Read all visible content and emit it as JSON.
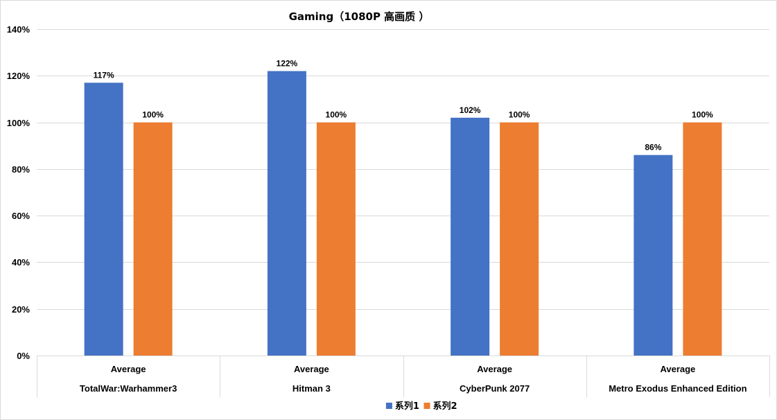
{
  "chart_data": {
    "type": "bar",
    "title": "Gaming（1080P 高画质 ）",
    "xlabel": "",
    "ylabel": "",
    "ylim": [
      0,
      1.4
    ],
    "y_ticks": [
      0,
      0.2,
      0.4,
      0.6,
      0.8,
      1.0,
      1.2,
      1.4
    ],
    "y_tick_labels": [
      "0%",
      "20%",
      "40%",
      "60%",
      "80%",
      "100%",
      "120%",
      "140%"
    ],
    "grid": true,
    "legend_position": "bottom",
    "category_levels": [
      [
        "Average",
        "Average",
        "Average",
        "Average"
      ],
      [
        "TotalWar:Warhammer3",
        "Hitman 3",
        "CyberPunk 2077",
        "Metro Exodus Enhanced Edition"
      ]
    ],
    "categories": [
      "Average TotalWar:Warhammer3",
      "Average Hitman 3",
      "Average CyberPunk 2077",
      "Average Metro Exodus Enhanced Edition"
    ],
    "series": [
      {
        "name": "系列1",
        "color": "#4472C4",
        "values": [
          1.17,
          1.22,
          1.02,
          0.86
        ],
        "labels": [
          "117%",
          "122%",
          "102%",
          "86%"
        ]
      },
      {
        "name": "系列2",
        "color": "#ED7D31",
        "values": [
          1.0,
          1.0,
          1.0,
          1.0
        ],
        "labels": [
          "100%",
          "100%",
          "100%",
          "100%"
        ]
      }
    ]
  }
}
